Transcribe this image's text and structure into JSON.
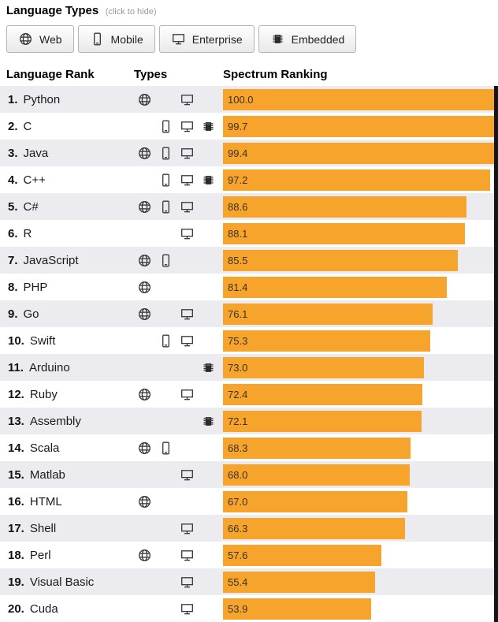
{
  "header": {
    "title": "Language Types",
    "hint": "(click to hide)"
  },
  "filters": [
    {
      "label": "Web",
      "icon": "globe"
    },
    {
      "label": "Mobile",
      "icon": "phone"
    },
    {
      "label": "Enterprise",
      "icon": "monitor"
    },
    {
      "label": "Embedded",
      "icon": "chip"
    }
  ],
  "table": {
    "columns": [
      "Language Rank",
      "Types",
      "Spectrum Ranking"
    ]
  },
  "chart_data": {
    "type": "bar",
    "orientation": "horizontal",
    "title": "Spectrum Ranking",
    "xlim": [
      0,
      100
    ],
    "bar_color": "#F7A42C",
    "rows": [
      {
        "rank": "1.",
        "name": "Python",
        "types": [
          "web",
          "enterprise"
        ],
        "score": 100.0
      },
      {
        "rank": "2.",
        "name": "C",
        "types": [
          "mobile",
          "enterprise",
          "embedded"
        ],
        "score": 99.7
      },
      {
        "rank": "3.",
        "name": "Java",
        "types": [
          "web",
          "mobile",
          "enterprise"
        ],
        "score": 99.4
      },
      {
        "rank": "4.",
        "name": "C++",
        "types": [
          "mobile",
          "enterprise",
          "embedded"
        ],
        "score": 97.2
      },
      {
        "rank": "5.",
        "name": "C#",
        "types": [
          "web",
          "mobile",
          "enterprise"
        ],
        "score": 88.6
      },
      {
        "rank": "6.",
        "name": "R",
        "types": [
          "enterprise"
        ],
        "score": 88.1
      },
      {
        "rank": "7.",
        "name": "JavaScript",
        "types": [
          "web",
          "mobile"
        ],
        "score": 85.5
      },
      {
        "rank": "8.",
        "name": "PHP",
        "types": [
          "web"
        ],
        "score": 81.4
      },
      {
        "rank": "9.",
        "name": "Go",
        "types": [
          "web",
          "enterprise"
        ],
        "score": 76.1
      },
      {
        "rank": "10.",
        "name": "Swift",
        "types": [
          "mobile",
          "enterprise"
        ],
        "score": 75.3
      },
      {
        "rank": "11.",
        "name": "Arduino",
        "types": [
          "embedded"
        ],
        "score": 73.0
      },
      {
        "rank": "12.",
        "name": "Ruby",
        "types": [
          "web",
          "enterprise"
        ],
        "score": 72.4
      },
      {
        "rank": "13.",
        "name": "Assembly",
        "types": [
          "embedded"
        ],
        "score": 72.1
      },
      {
        "rank": "14.",
        "name": "Scala",
        "types": [
          "web",
          "mobile"
        ],
        "score": 68.3
      },
      {
        "rank": "15.",
        "name": "Matlab",
        "types": [
          "enterprise"
        ],
        "score": 68.0
      },
      {
        "rank": "16.",
        "name": "HTML",
        "types": [
          "web"
        ],
        "score": 67.0
      },
      {
        "rank": "17.",
        "name": "Shell",
        "types": [
          "enterprise"
        ],
        "score": 66.3
      },
      {
        "rank": "18.",
        "name": "Perl",
        "types": [
          "web",
          "enterprise"
        ],
        "score": 57.6
      },
      {
        "rank": "19.",
        "name": "Visual Basic",
        "types": [
          "enterprise"
        ],
        "score": 55.4
      },
      {
        "rank": "20.",
        "name": "Cuda",
        "types": [
          "enterprise"
        ],
        "score": 53.9
      }
    ]
  }
}
